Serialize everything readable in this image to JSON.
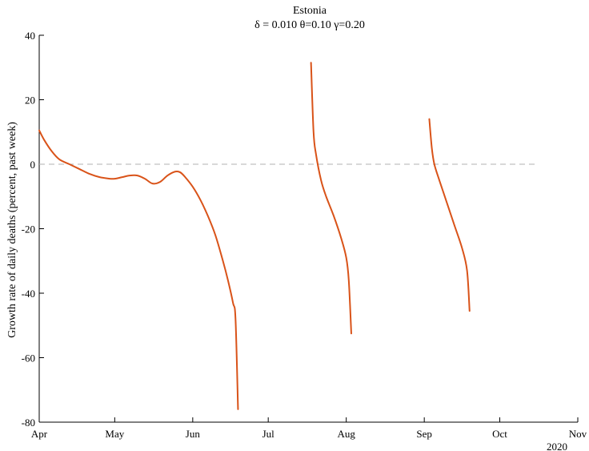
{
  "chart_data": {
    "type": "line",
    "title": "Estonia",
    "subtitle": "δ = 0.010  θ=0.10  γ=0.20",
    "xlabel": "",
    "ylabel": "Growth rate of daily deaths (percent, past week)",
    "ylim": [
      -80,
      40
    ],
    "yticks": [
      -80,
      -60,
      -40,
      -20,
      0,
      20,
      40
    ],
    "ytick_labels": [
      "-80",
      "-60",
      "-40",
      "-20",
      "0",
      "20",
      "40"
    ],
    "xlim": [
      "2020-04-01",
      "2020-11-01"
    ],
    "xticks": [
      "2020-04-01",
      "2020-05-01",
      "2020-06-01",
      "2020-07-01",
      "2020-08-01",
      "2020-09-01",
      "2020-10-01",
      "2020-11-01"
    ],
    "xtick_labels": [
      "Apr",
      "May",
      "Jun",
      "Jul",
      "Aug",
      "Sep",
      "Oct",
      "Nov"
    ],
    "year_label": "2020",
    "line_color": "#d95319",
    "reference_line": {
      "y": 0,
      "x_start": "2020-04-01",
      "x_end": "2020-10-16",
      "color": "#b0b0b0",
      "style": "dashed"
    },
    "series": [
      {
        "x": [
          "2020-04-01",
          "2020-04-03",
          "2020-04-06",
          "2020-04-09",
          "2020-04-13",
          "2020-04-17",
          "2020-04-21",
          "2020-04-25",
          "2020-04-29",
          "2020-05-01",
          "2020-05-04",
          "2020-05-07",
          "2020-05-10",
          "2020-05-13",
          "2020-05-16",
          "2020-05-19",
          "2020-05-22",
          "2020-05-25",
          "2020-05-27",
          "2020-05-29",
          "2020-06-01",
          "2020-06-04",
          "2020-06-07",
          "2020-06-10",
          "2020-06-13",
          "2020-06-15",
          "2020-06-17",
          "2020-06-18",
          "2020-06-19"
        ],
        "y": [
          10.5,
          7.5,
          4,
          1.5,
          0,
          -1.5,
          -3,
          -4,
          -4.5,
          -4.5,
          -4,
          -3.5,
          -3.5,
          -4.5,
          -6,
          -5.5,
          -3.5,
          -2.3,
          -2.5,
          -4,
          -7,
          -11,
          -16,
          -22,
          -30,
          -36,
          -43,
          -48,
          -76
        ]
      },
      {
        "x": [
          "2020-07-18",
          "2020-07-19",
          "2020-07-20",
          "2020-07-22",
          "2020-07-24",
          "2020-07-27",
          "2020-07-30",
          "2020-08-01",
          "2020-08-02",
          "2020-08-03"
        ],
        "y": [
          31.5,
          10,
          3,
          -5,
          -10,
          -16,
          -23,
          -29,
          -36,
          -52.5
        ]
      },
      {
        "x": [
          "2020-09-03",
          "2020-09-04",
          "2020-09-05",
          "2020-09-07",
          "2020-09-10",
          "2020-09-13",
          "2020-09-16",
          "2020-09-18",
          "2020-09-19"
        ],
        "y": [
          14,
          5,
          0,
          -5,
          -12,
          -19,
          -26,
          -33,
          -45.5
        ]
      }
    ]
  }
}
